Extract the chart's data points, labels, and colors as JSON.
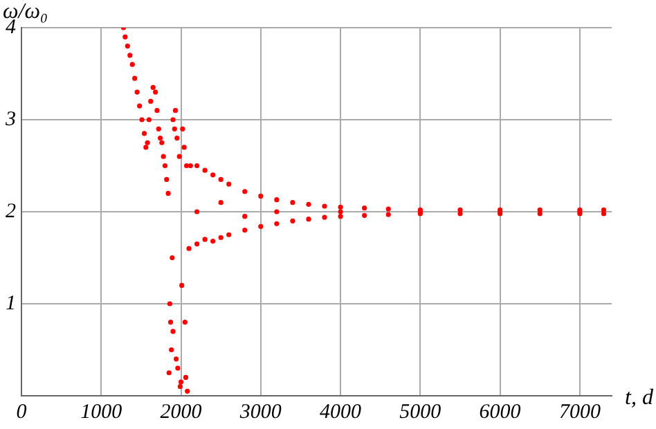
{
  "chart_data": {
    "type": "scatter",
    "xlabel": "t, d",
    "ylabel": "ω/ω₀",
    "xlim": [
      0,
      7400
    ],
    "ylim": [
      0,
      4
    ],
    "xticks": [
      0,
      1000,
      2000,
      3000,
      4000,
      5000,
      6000,
      7000
    ],
    "yticks": [
      {
        "value": 0,
        "label": null
      },
      1,
      2,
      3,
      4
    ],
    "grid": true,
    "marker": "circle",
    "series": [
      {
        "color": "#ff0000",
        "x": [
          1280,
          1300,
          1330,
          1360,
          1390,
          1420,
          1450,
          1480,
          1510,
          1540,
          1560,
          1580,
          1600,
          1620,
          1650,
          1680,
          1700,
          1720,
          1740,
          1760,
          1780,
          1800,
          1820,
          1840,
          1850,
          1860,
          1870,
          1880,
          1890,
          1900,
          1900,
          1920,
          1930,
          1940,
          1950,
          1960,
          1980,
          1990,
          2000,
          2010,
          2020,
          2040,
          2050,
          2060,
          2070,
          2080,
          2100,
          2120,
          2200,
          2300,
          2400,
          2500,
          2600,
          2800,
          3000,
          3200,
          3400,
          3600,
          3800,
          4000,
          4300,
          4600,
          5000,
          5500,
          6000,
          6500,
          7000,
          7300,
          2200,
          2300,
          2400,
          2500,
          2600,
          2800,
          3000,
          3200,
          3400,
          3600,
          3800,
          4000,
          4300,
          4600,
          5000,
          5500,
          6000,
          6500,
          7000,
          7300,
          2200,
          2500,
          2800,
          3200,
          4000,
          5000,
          6000,
          7000
        ],
        "values": [
          4.0,
          3.9,
          3.8,
          3.7,
          3.6,
          3.45,
          3.3,
          3.15,
          3.0,
          2.85,
          2.7,
          2.75,
          3.0,
          3.2,
          3.35,
          3.3,
          3.1,
          2.9,
          2.8,
          2.75,
          2.6,
          2.5,
          2.35,
          2.2,
          0.25,
          1.0,
          0.8,
          0.5,
          1.5,
          3.0,
          0.7,
          2.9,
          3.1,
          0.4,
          2.8,
          0.3,
          2.6,
          0.1,
          0.15,
          1.2,
          2.9,
          2.7,
          0.8,
          0.2,
          2.5,
          0.05,
          1.6,
          2.5,
          2.5,
          2.45,
          2.4,
          2.35,
          2.3,
          2.22,
          2.17,
          2.13,
          2.1,
          2.08,
          2.06,
          2.05,
          2.04,
          2.03,
          2.02,
          2.02,
          2.02,
          2.02,
          2.02,
          2.02,
          1.65,
          1.7,
          1.68,
          1.72,
          1.75,
          1.8,
          1.84,
          1.87,
          1.9,
          1.92,
          1.94,
          1.95,
          1.96,
          1.97,
          1.98,
          1.98,
          1.98,
          1.98,
          1.98,
          1.98,
          2.0,
          2.1,
          1.95,
          2.0,
          2.0,
          2.0,
          2.0,
          2.0
        ]
      }
    ]
  }
}
